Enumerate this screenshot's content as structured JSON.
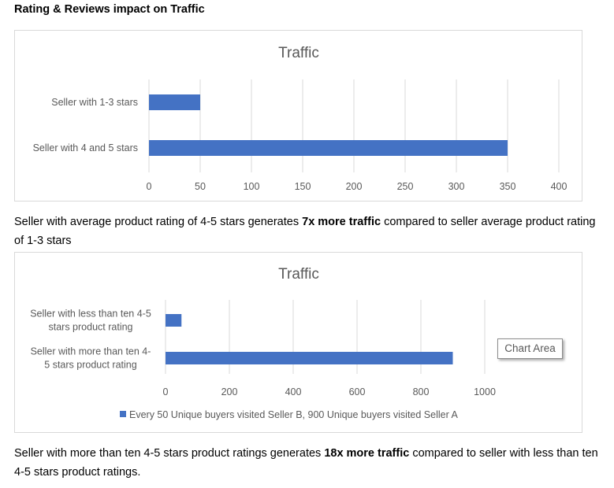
{
  "heading": "Rating & Reviews impact on Traffic",
  "para1": {
    "pre": "Seller with average product rating of 4-5 stars generates ",
    "bold": "7x more traffic",
    "post": " compared to seller average product rating of 1-3 stars"
  },
  "para2": {
    "pre": "Seller with more than ten 4-5 stars product ratings generates ",
    "bold": "18x more traffic",
    "post": " compared to seller with less than ten 4-5 stars product ratings."
  },
  "tooltip": "Chart Area",
  "chart_data": [
    {
      "type": "bar",
      "orientation": "horizontal",
      "title": "Traffic",
      "categories": [
        "Seller with 1-3 stars",
        "Seller with 4 and 5 stars"
      ],
      "values": [
        50,
        350
      ],
      "xlim": [
        0,
        400
      ],
      "ticks": [
        0,
        50,
        100,
        150,
        200,
        250,
        300,
        350,
        400
      ],
      "grid": true,
      "color": "#4472c4"
    },
    {
      "type": "bar",
      "orientation": "horizontal",
      "title": "Traffic",
      "categories": [
        [
          "Seller with less than ten 4-5",
          "stars product rating"
        ],
        [
          "Seller with more than ten 4-",
          "5 stars product rating"
        ]
      ],
      "values": [
        50,
        900
      ],
      "xlim": [
        0,
        1000
      ],
      "ticks": [
        0,
        200,
        400,
        600,
        800,
        1000
      ],
      "grid": true,
      "color": "#4472c4",
      "legend": {
        "position": "bottom",
        "label": "Every 50 Unique buyers visited Seller B, 900 Unique buyers visited Seller A"
      }
    }
  ]
}
